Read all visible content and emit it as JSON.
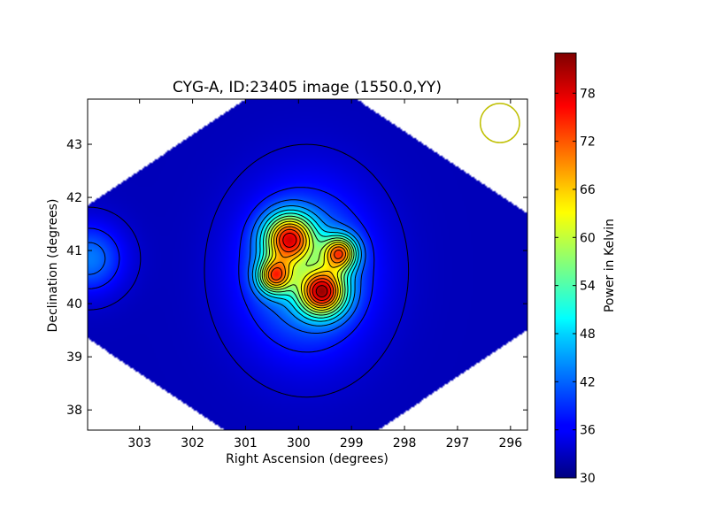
{
  "chart_data": {
    "type": "heatmap",
    "title": "CYG-A, ID:23405 image (1550.0,YY)",
    "xlabel": "Right Ascension (degrees)",
    "ylabel": "Declination (degrees)",
    "xlim": [
      303.98,
      295.68
    ],
    "ylim": [
      37.62,
      43.85
    ],
    "x_ticks": [
      303,
      302,
      301,
      300,
      299,
      298,
      297,
      296
    ],
    "y_ticks": [
      38,
      39,
      40,
      41,
      42,
      43
    ],
    "colorbar": {
      "label": "Power in Kelvin",
      "range": [
        30,
        83
      ],
      "ticks": [
        30,
        36,
        42,
        48,
        54,
        60,
        66,
        72,
        78
      ],
      "colormap": "jet"
    },
    "background_level": 33,
    "sources": [
      {
        "ra": 300.18,
        "dec": 41.22,
        "peak": 80
      },
      {
        "ra": 299.55,
        "dec": 40.22,
        "peak": 82
      },
      {
        "ra": 299.22,
        "dec": 40.95,
        "peak": 75
      },
      {
        "ra": 300.45,
        "dec": 40.52,
        "peak": 74
      },
      {
        "ra": 303.95,
        "dec": 40.85,
        "peak": 43
      }
    ],
    "beam": {
      "ra": 296.2,
      "dec": 43.4,
      "radius_deg": 0.37,
      "color": "#bfbf00"
    }
  }
}
